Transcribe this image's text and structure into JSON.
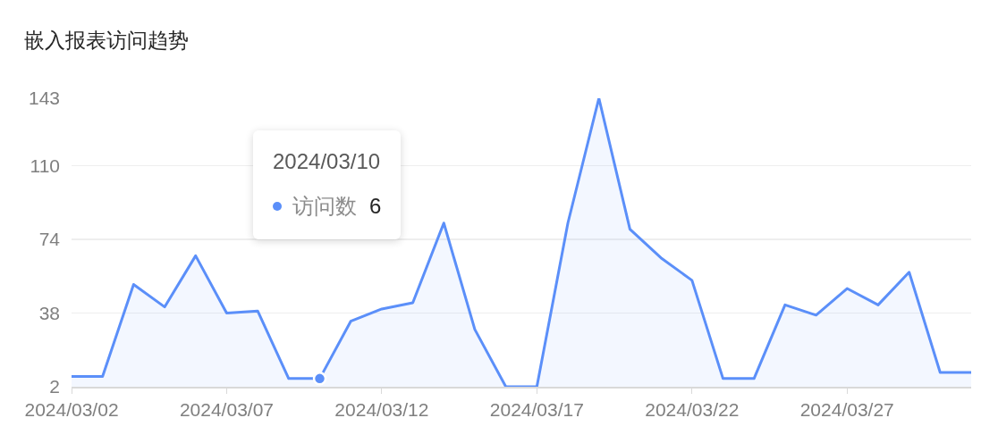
{
  "chart_data": {
    "type": "area",
    "title": "嵌入报表访问趋势",
    "x": [
      "2024-03-02",
      "2024-03-03",
      "2024-03-04",
      "2024-03-05",
      "2024-03-06",
      "2024-03-07",
      "2024-03-08",
      "2024-03-09",
      "2024-03-10",
      "2024-03-11",
      "2024-03-12",
      "2024-03-13",
      "2024-03-14",
      "2024-03-15",
      "2024-03-16",
      "2024-03-17",
      "2024-03-18",
      "2024-03-19",
      "2024-03-20",
      "2024-03-21",
      "2024-03-22",
      "2024-03-23",
      "2024-03-24",
      "2024-03-25",
      "2024-03-26",
      "2024-03-27",
      "2024-03-28",
      "2024-03-29",
      "2024-03-30",
      "2024-03-31"
    ],
    "series": [
      {
        "name": "访问数",
        "color": "#5b8ff9",
        "values": [
          7,
          7,
          52,
          41,
          66,
          38,
          39,
          6,
          6,
          34,
          40,
          43,
          82,
          30,
          2,
          2,
          82,
          143,
          79,
          65,
          54,
          6,
          6,
          42,
          37,
          50,
          42,
          58,
          9,
          9
        ]
      },
      {
        "type": "scatter",
        "color": "#5b8ff9",
        "x": [
          "2024-03-10"
        ],
        "values": [
          6
        ]
      }
    ],
    "xlim": [
      "2024-03-02",
      "2024-03-31"
    ],
    "xticks": [
      {
        "value": "2024-03-02",
        "label": "2024/03/02"
      },
      {
        "value": "2024-03-07",
        "label": "2024/03/07"
      },
      {
        "value": "2024-03-12",
        "label": "2024/03/12"
      },
      {
        "value": "2024-03-17",
        "label": "2024/03/17"
      },
      {
        "value": "2024-03-22",
        "label": "2024/03/22"
      },
      {
        "value": "2024-03-27",
        "label": "2024/03/27"
      }
    ],
    "ylim": [
      2,
      143
    ],
    "yticks": [
      2,
      38,
      74,
      110,
      143
    ],
    "grid": "y",
    "annotations": [
      "2024/03/10",
      "6"
    ]
  }
}
